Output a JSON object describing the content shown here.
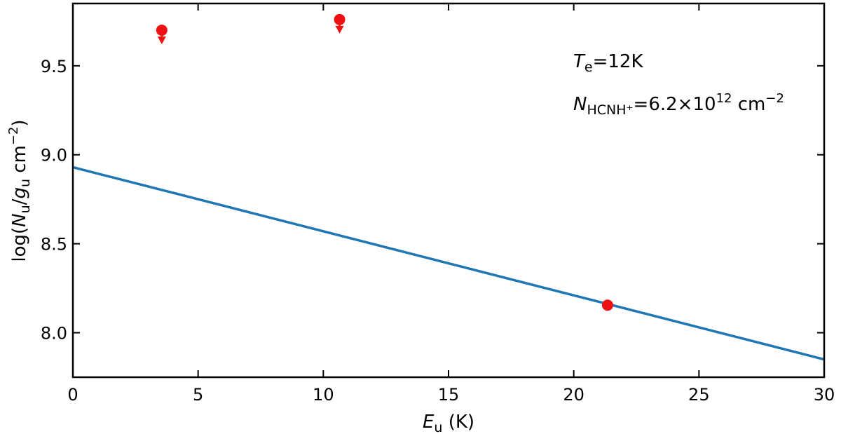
{
  "chart_data": {
    "type": "scatter",
    "xlim": [
      0,
      30
    ],
    "ylim": [
      7.75,
      9.85
    ],
    "grid": false,
    "x_ticks": [
      "0",
      "5",
      "10",
      "15",
      "20",
      "25",
      "30"
    ],
    "y_ticks": [
      "8.0",
      "8.5",
      "9.0",
      "9.5"
    ],
    "xlabel": {
      "var": "E",
      "sub": "u",
      "unit": " (K)"
    },
    "ylabel": {
      "prefix": "log(",
      "n": "N",
      "n_sub": "u",
      "slash": "/",
      "g": "g",
      "g_sub": "u",
      "unit": " cm",
      "exp": "−2",
      "close": ")"
    },
    "fit_line": {
      "x": [
        0,
        30
      ],
      "y": [
        8.93,
        7.85
      ],
      "color": "#1f77b4"
    },
    "points": [
      {
        "x": 3.55,
        "y": 9.7,
        "upper_limit": true
      },
      {
        "x": 10.65,
        "y": 9.76,
        "upper_limit": true
      },
      {
        "x": 21.35,
        "y": 8.155,
        "upper_limit": false,
        "yerr": 0.03
      }
    ],
    "point_color": "#ee1111",
    "annotations": {
      "temp": {
        "var": "T",
        "sub": "e",
        "value": "=12K"
      },
      "column": {
        "var": "N",
        "sub": "HCNH⁺",
        "value": "=6.2×10",
        "exp": "12",
        "unit": " cm",
        "unit_exp": "−2"
      }
    }
  }
}
